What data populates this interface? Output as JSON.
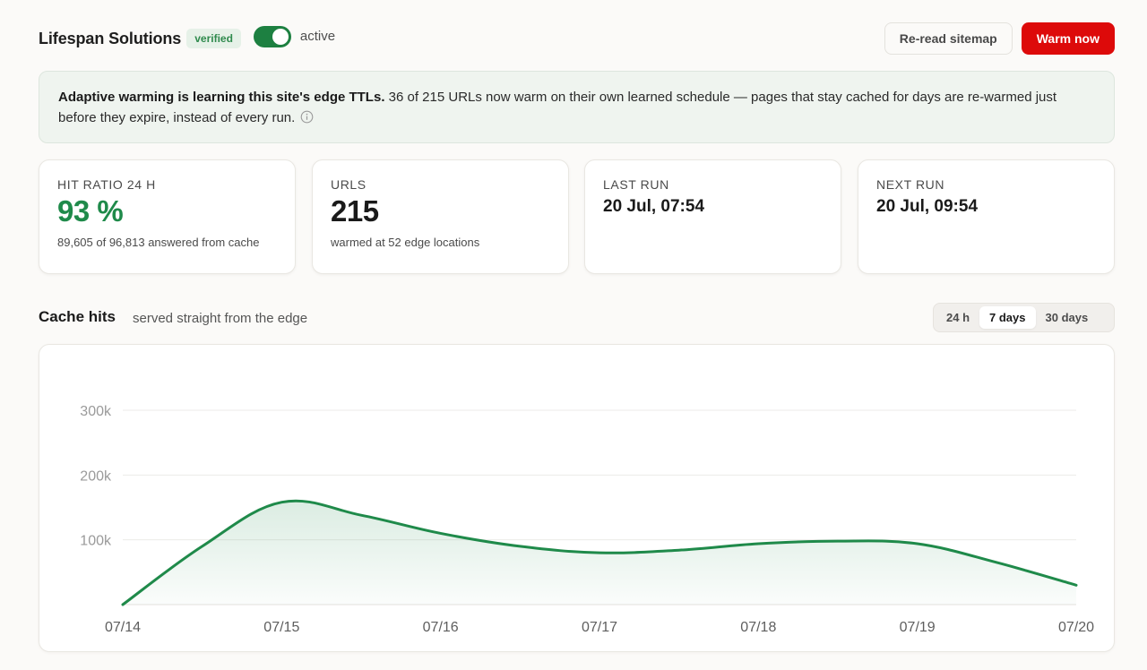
{
  "header": {
    "site_name": "Lifespan Solutions",
    "verified_badge": "verified",
    "toggle_label": "active",
    "toggle_on": true,
    "reread_button": "Re-read sitemap",
    "warm_button": "Warm now"
  },
  "notice": {
    "bold": "Adaptive warming is learning this site's edge TTLs.",
    "text": "36 of 215 URLs now warm on their own learned schedule — pages that stay cached for days are re-warmed just before they expire, instead of every run."
  },
  "stats": {
    "hit_ratio": {
      "label": "HIT RATIO 24 H",
      "value": "93 %",
      "sub": "89,605 of 96,813 answered from cache"
    },
    "urls": {
      "label": "URLS",
      "value": "215",
      "sub": "warmed at 52 edge locations"
    },
    "last_run": {
      "label": "LAST RUN",
      "value": "20 Jul, 07:54"
    },
    "next_run": {
      "label": "NEXT RUN",
      "value": "20 Jul, 09:54"
    }
  },
  "section": {
    "title": "Cache hits",
    "subtitle": "served straight from the edge",
    "range_tabs": [
      "24 h",
      "7 days",
      "30 days"
    ],
    "active_range": "7 days"
  },
  "colors": {
    "accent_green": "#1f8a4a",
    "toggle_green": "#1d8041",
    "warm_red": "#dd0a0a"
  },
  "chart_data": {
    "type": "area",
    "x": [
      "07/14",
      "07/14.5",
      "07/15",
      "07/15.5",
      "07/16",
      "07/16.5",
      "07/17",
      "07/17.5",
      "07/18",
      "07/18.5",
      "07/19",
      "07/19.5",
      "07/20"
    ],
    "x_ticks": [
      "07/14",
      "07/15",
      "07/16",
      "07/17",
      "07/18",
      "07/19",
      "07/20"
    ],
    "values": [
      0,
      90000,
      158000,
      138000,
      110000,
      90000,
      80000,
      84000,
      94000,
      98000,
      94000,
      65000,
      30000
    ],
    "y_ticks": [
      "100k",
      "200k",
      "300k"
    ],
    "y_tick_values": [
      100000,
      200000,
      300000
    ],
    "ylim": [
      0,
      300000
    ],
    "grid": true,
    "series_color": "#1f8a4a"
  }
}
